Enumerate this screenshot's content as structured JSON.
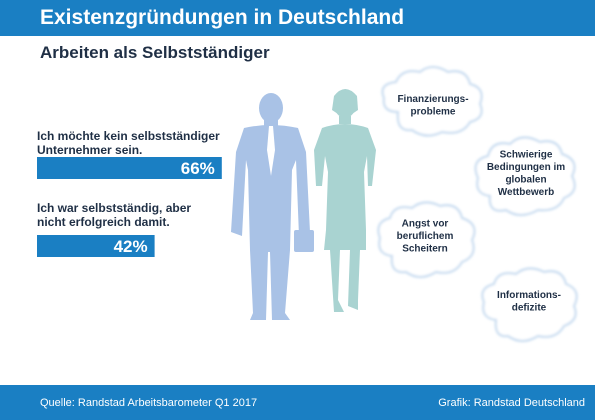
{
  "header": {
    "title": "Existenzgründungen in Deutschland"
  },
  "subtitle": "Arbeiten als Selbstständiger",
  "chart_data": {
    "type": "bar",
    "orientation": "horizontal",
    "title": "Existenzgründungen in Deutschland",
    "subtitle": "Arbeiten als Selbstständiger",
    "categories": [
      [
        "Ich möchte kein selbstständiger",
        "Unternehmer sein."
      ],
      [
        "Ich war selbstständig, aber",
        "nicht erfolgreich damit."
      ]
    ],
    "values": [
      66,
      42
    ],
    "value_labels": [
      "66%",
      "42%"
    ],
    "xlim": [
      0,
      100
    ],
    "bar_color": "#1a7fc3",
    "annotations": [
      [
        "Finanzierungs-",
        "probleme"
      ],
      [
        "Schwierige",
        "Bedingungen im",
        "globalen",
        "Wettbewerb"
      ],
      [
        "Angst vor",
        "beruflichem",
        "Scheitern"
      ],
      [
        "Informations-",
        "defizite"
      ]
    ]
  },
  "footer": {
    "source": "Quelle: Randstad Arbeitsbarometer Q1 2017",
    "credit": "Grafik: Randstad Deutschland"
  },
  "colors": {
    "brand_blue": "#1a7fc3",
    "man_silhouette": "#a9c2e6",
    "woman_silhouette": "#a9d3d1",
    "cloud_stroke": "#c3d9ef"
  }
}
